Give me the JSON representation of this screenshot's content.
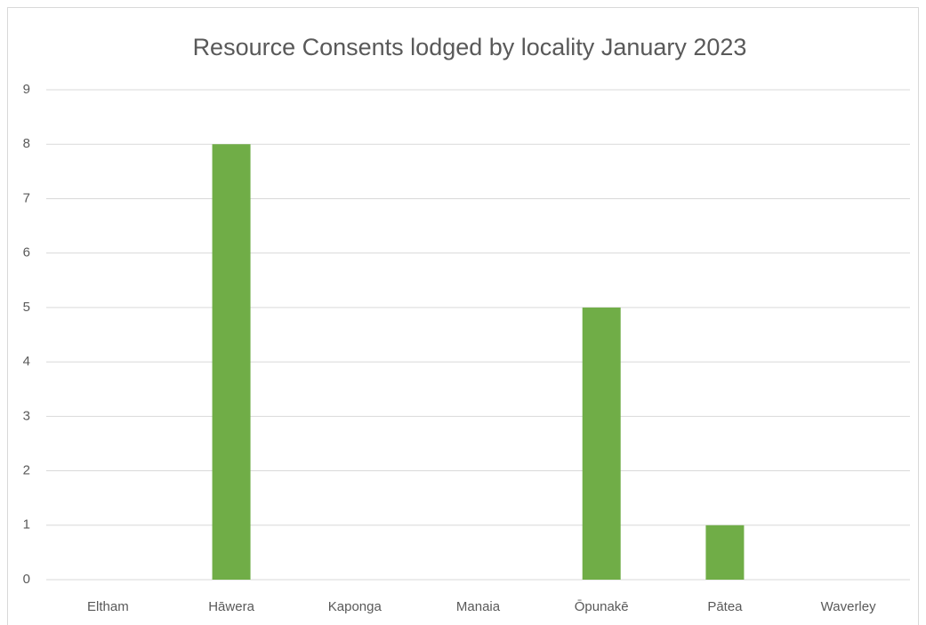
{
  "chart_data": {
    "type": "bar",
    "title": "Resource Consents lodged by locality January 2023",
    "categories": [
      "Eltham",
      "Hāwera",
      "Kaponga",
      "Manaia",
      "Ōpunakē",
      "Pātea",
      "Waverley"
    ],
    "values": [
      0,
      8,
      0,
      0,
      5,
      1,
      0
    ],
    "color": "#70ad47",
    "ylim": [
      0,
      9
    ],
    "yticks": [
      0,
      1,
      2,
      3,
      4,
      5,
      6,
      7,
      8,
      9
    ],
    "grid": true
  }
}
